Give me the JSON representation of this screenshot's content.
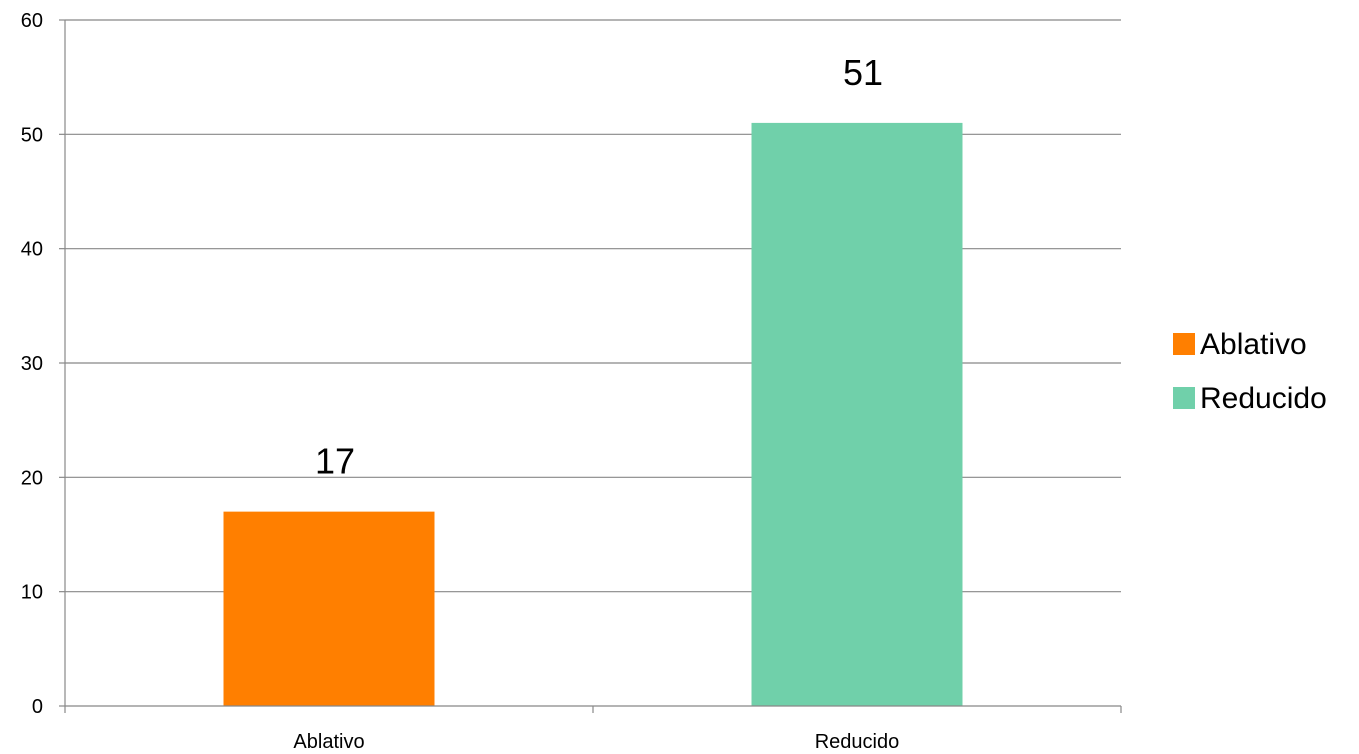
{
  "chart_data": {
    "type": "bar",
    "categories": [
      "Ablativo",
      "Reducido"
    ],
    "values": [
      17,
      51
    ],
    "data_labels": [
      "17",
      "51"
    ],
    "colors": [
      "#ff7f00",
      "#70d0aa"
    ],
    "title": "",
    "xlabel": "",
    "ylabel": "",
    "ylim": [
      0,
      60
    ],
    "yticks": [
      0,
      10,
      20,
      30,
      40,
      50,
      60
    ],
    "ytick_labels": [
      "0",
      "10",
      "20",
      "30",
      "40",
      "50",
      "60"
    ],
    "grid": true,
    "grid_color": "#888888",
    "legend": {
      "placement": "right",
      "entries": [
        {
          "label": "Ablativo",
          "color": "#ff7f00"
        },
        {
          "label": "Reducido",
          "color": "#70d0aa"
        }
      ]
    }
  }
}
